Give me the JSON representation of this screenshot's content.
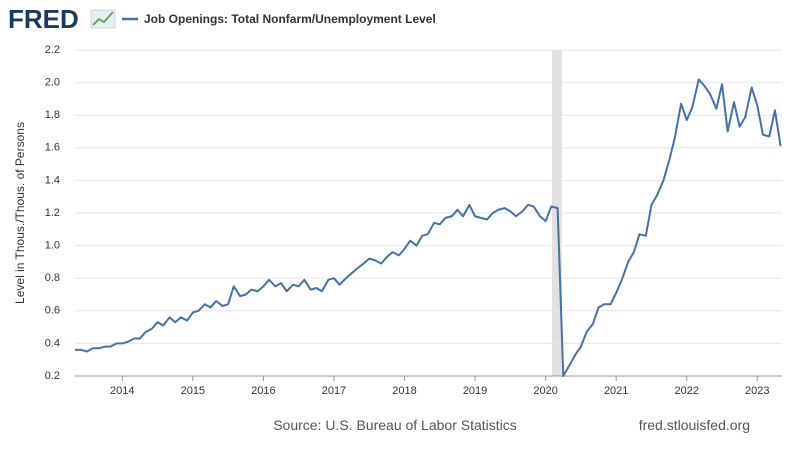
{
  "brand": "FRED",
  "footer": {
    "source": "Source: U.S. Bureau of Labor Statistics",
    "site": "fred.stlouisfed.org"
  },
  "chart_data": {
    "type": "line",
    "ylabel": "Level in Thous./Thous. of Persons",
    "x": [
      2013.33,
      2013.42,
      2013.5,
      2013.58,
      2013.67,
      2013.75,
      2013.83,
      2013.92,
      2014.0,
      2014.08,
      2014.17,
      2014.25,
      2014.33,
      2014.42,
      2014.5,
      2014.58,
      2014.67,
      2014.75,
      2014.83,
      2014.92,
      2015.0,
      2015.08,
      2015.17,
      2015.25,
      2015.33,
      2015.42,
      2015.5,
      2015.58,
      2015.67,
      2015.75,
      2015.83,
      2015.92,
      2016.0,
      2016.08,
      2016.17,
      2016.25,
      2016.33,
      2016.42,
      2016.5,
      2016.58,
      2016.67,
      2016.75,
      2016.83,
      2016.92,
      2017.0,
      2017.08,
      2017.17,
      2017.25,
      2017.33,
      2017.42,
      2017.5,
      2017.58,
      2017.67,
      2017.75,
      2017.83,
      2017.92,
      2018.0,
      2018.08,
      2018.17,
      2018.25,
      2018.33,
      2018.42,
      2018.5,
      2018.58,
      2018.67,
      2018.75,
      2018.83,
      2018.92,
      2019.0,
      2019.08,
      2019.17,
      2019.25,
      2019.33,
      2019.42,
      2019.5,
      2019.58,
      2019.67,
      2019.75,
      2019.83,
      2019.92,
      2020.0,
      2020.08,
      2020.17,
      2020.25,
      2020.33,
      2020.42,
      2020.5,
      2020.58,
      2020.67,
      2020.75,
      2020.83,
      2020.92,
      2021.0,
      2021.08,
      2021.17,
      2021.25,
      2021.33,
      2021.42,
      2021.5,
      2021.58,
      2021.67,
      2021.75,
      2021.83,
      2021.92,
      2022.0,
      2022.08,
      2022.17,
      2022.25,
      2022.33,
      2022.42,
      2022.5,
      2022.58,
      2022.67,
      2022.75,
      2022.83,
      2022.92,
      2023.0,
      2023.08,
      2023.17,
      2023.25,
      2023.33
    ],
    "series": [
      {
        "name": "Job Openings: Total Nonfarm/Unemployment Level",
        "color": "#4572a7",
        "values": [
          0.36,
          0.36,
          0.35,
          0.37,
          0.37,
          0.38,
          0.38,
          0.4,
          0.4,
          0.41,
          0.43,
          0.43,
          0.47,
          0.49,
          0.53,
          0.51,
          0.56,
          0.53,
          0.56,
          0.54,
          0.59,
          0.6,
          0.64,
          0.62,
          0.66,
          0.63,
          0.64,
          0.75,
          0.69,
          0.7,
          0.73,
          0.72,
          0.75,
          0.79,
          0.75,
          0.77,
          0.72,
          0.76,
          0.75,
          0.79,
          0.73,
          0.74,
          0.72,
          0.79,
          0.8,
          0.76,
          0.8,
          0.83,
          0.86,
          0.89,
          0.92,
          0.91,
          0.89,
          0.93,
          0.96,
          0.94,
          0.98,
          1.03,
          1.0,
          1.06,
          1.07,
          1.14,
          1.13,
          1.17,
          1.18,
          1.22,
          1.18,
          1.25,
          1.18,
          1.17,
          1.16,
          1.2,
          1.22,
          1.23,
          1.21,
          1.18,
          1.21,
          1.25,
          1.24,
          1.18,
          1.15,
          1.24,
          1.23,
          0.2,
          0.26,
          0.33,
          0.38,
          0.47,
          0.52,
          0.62,
          0.64,
          0.64,
          0.71,
          0.79,
          0.9,
          0.96,
          1.07,
          1.06,
          1.25,
          1.31,
          1.4,
          1.52,
          1.66,
          1.87,
          1.77,
          1.85,
          2.02,
          1.98,
          1.93,
          1.84,
          1.99,
          1.7,
          1.88,
          1.73,
          1.79,
          1.97,
          1.86,
          1.68,
          1.67,
          1.83,
          1.61
        ]
      }
    ],
    "xlim": [
      2013.33,
      2023.35
    ],
    "xticks": [
      2014,
      2015,
      2016,
      2017,
      2018,
      2019,
      2020,
      2021,
      2022,
      2023
    ],
    "ylim": [
      0.2,
      2.2
    ],
    "yticks": [
      0.2,
      0.4,
      0.6,
      0.8,
      {
        "value": 1,
        "label": "1.0"
      },
      1.2,
      1.4,
      1.6,
      1.8,
      {
        "value": 2,
        "label": "2.0"
      },
      2.2
    ],
    "grid": true,
    "shaded_ranges": [
      [
        2020.09,
        2020.23
      ]
    ]
  }
}
